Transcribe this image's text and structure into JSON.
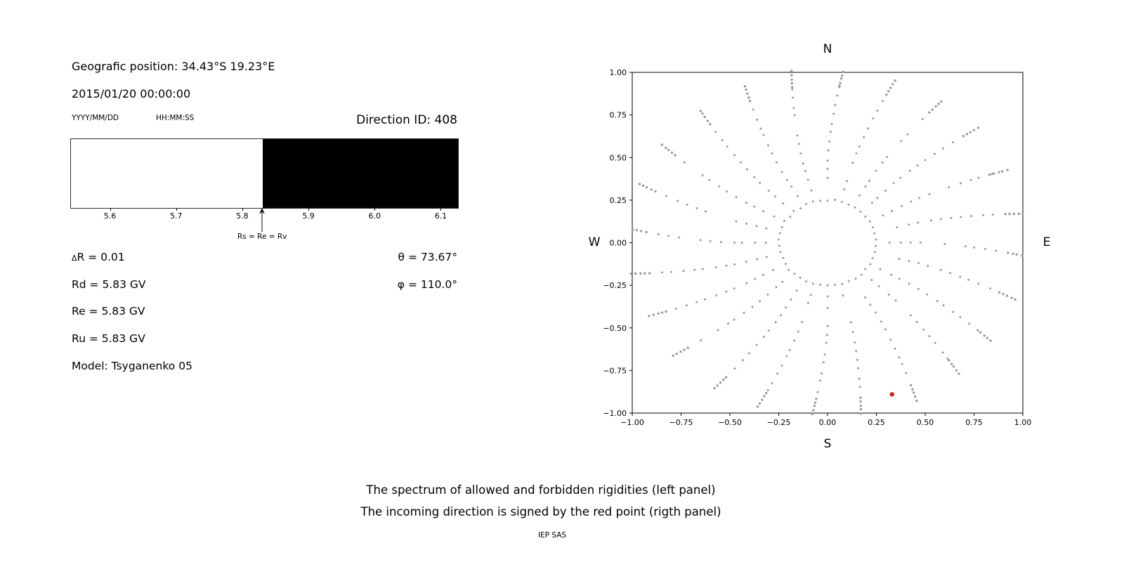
{
  "left_panel": {
    "geo_position": "Geografic position: 34.43°S 19.23°E",
    "datetime": "2015/01/20 00:00:00",
    "date_format": "YYYY/MM/DD",
    "time_format": "HH:MM:SS",
    "direction_id": "Direction ID: 408",
    "delta_r": "ΔR = 0.01",
    "rd": "Rd = 5.83 GV",
    "re": "Re = 5.83 GV",
    "ru": "Ru = 5.83 GV",
    "model": "Model: Tsyganenko 05",
    "theta": "θ = 73.67°",
    "phi": "φ = 110.0°"
  },
  "captions": {
    "line1": "The spectrum of allowed and forbidden rigidities (left panel)",
    "line2": "The incoming direction is signed by the red point (rigth panel)",
    "credit": "IEP SAS"
  },
  "chart_data": [
    {
      "type": "bar",
      "xlim": [
        5.54,
        6.125
      ],
      "tick_values": [
        5.6,
        5.7,
        5.8,
        5.9,
        6.0,
        6.1
      ],
      "tick_labels": [
        "5.6",
        "5.7",
        "5.8",
        "5.9",
        "6.0",
        "6.1"
      ],
      "boundary": 5.83,
      "regions": [
        {
          "label": "allowed rigidities",
          "from": 5.54,
          "to": 5.83,
          "color": "#ffffff"
        },
        {
          "label": "forbidden rigidities",
          "from": 5.83,
          "to": 6.125,
          "color": "#000000"
        }
      ],
      "marker": {
        "x": 5.83,
        "label": "Rs = Re = Rv"
      }
    },
    {
      "type": "scatter",
      "xlim": [
        -1,
        1
      ],
      "ylim": [
        -1,
        1
      ],
      "tick_values": [
        -1,
        -0.75,
        -0.5,
        -0.25,
        0,
        0.25,
        0.5,
        0.75,
        1
      ],
      "tick_labels": [
        "−1.00",
        "−0.75",
        "−0.50",
        "−0.25",
        "0.00",
        "0.25",
        "0.50",
        "0.75",
        "1.00"
      ],
      "compass": {
        "top": "N",
        "bottom": "S",
        "left": "W",
        "right": "E"
      },
      "dot_color": "#9a9a9a",
      "red_point": {
        "x": 0.33,
        "y": -0.89,
        "color": "#d62222",
        "label": "incoming direction"
      },
      "pattern": {
        "inner_ring": {
          "radius": 0.25,
          "count": 42
        },
        "spokes": {
          "count": 24,
          "start_deg": 0,
          "step_deg": 15,
          "r_start": 0.32,
          "r_end": 0.91,
          "dot_step": 0.055,
          "clump": {
            "r_start": 0.93,
            "r_end": 1.02,
            "count": 5
          },
          "curvature_deg": 9,
          "curvature_onset": 0.5
        }
      }
    }
  ]
}
